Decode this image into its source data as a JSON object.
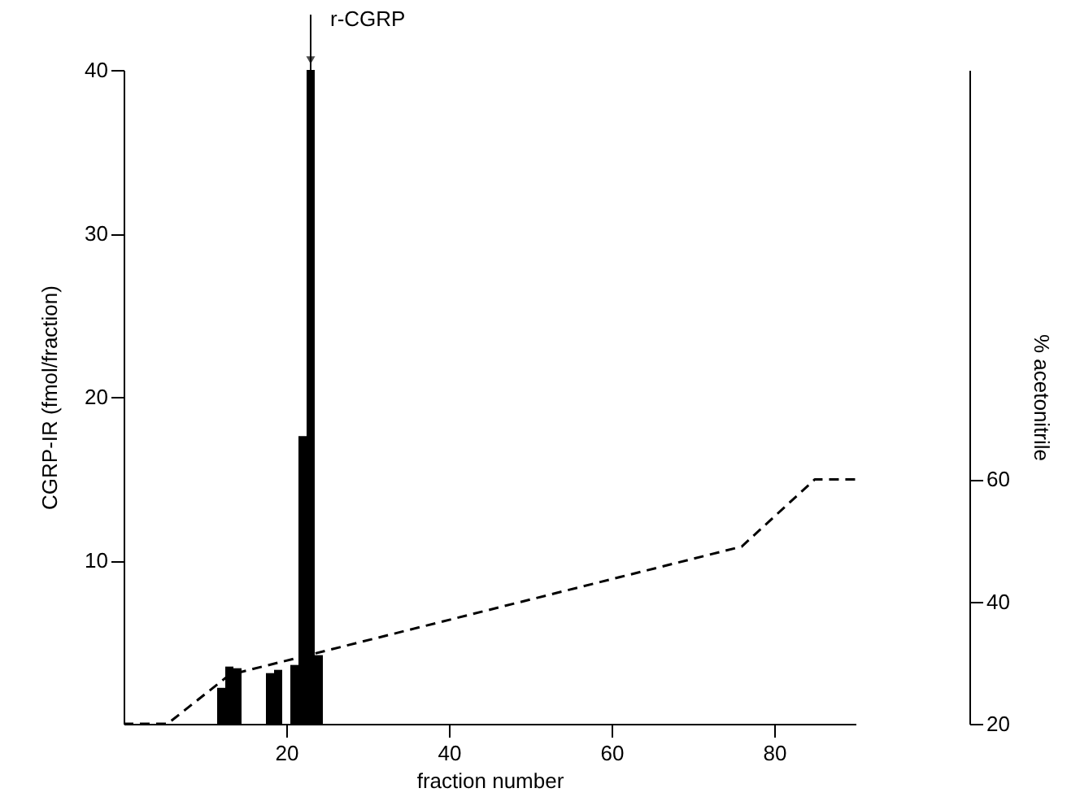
{
  "chart_data": {
    "type": "bar",
    "xlabel": "fraction number",
    "ylabel": "CGRP-IR (fmol/fraction)",
    "y2label": "% acetonitrile",
    "xlim": [
      0,
      90
    ],
    "xticks": [
      20,
      40,
      60,
      80
    ],
    "ylim": [
      0,
      40
    ],
    "yticks": [
      10,
      20,
      30,
      40
    ],
    "y2lim": [
      20,
      127
    ],
    "y2ticks": [
      20,
      40,
      60
    ],
    "series": [
      {
        "color": "#000000",
        "x": [
          12,
          13,
          14,
          18,
          19,
          21,
          22,
          23,
          24
        ],
        "values": [
          2.2,
          3.5,
          3.4,
          3.1,
          3.3,
          3.6,
          17.6,
          40,
          4.2
        ]
      },
      {
        "type": "line",
        "axis": "y2",
        "color": "#000000",
        "line_style": "dashed",
        "x": [
          0,
          5.4,
          13,
          76,
          85,
          90
        ],
        "values": [
          20,
          20,
          28,
          49,
          60,
          60
        ]
      }
    ],
    "annotations": [
      {
        "text": "r-CGRP",
        "x": 23,
        "y": 40
      }
    ],
    "grid": false
  }
}
